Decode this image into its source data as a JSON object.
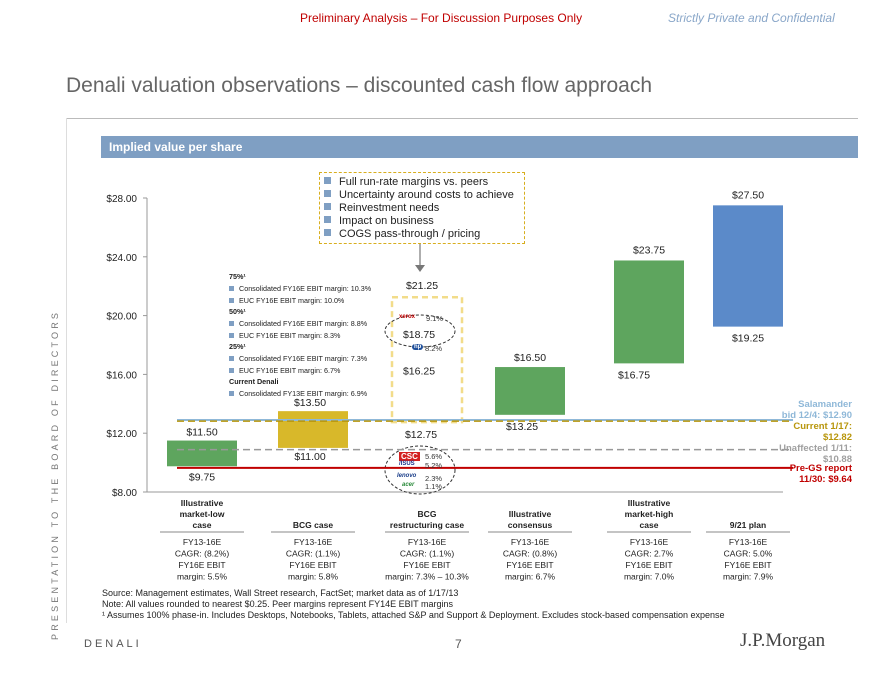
{
  "header": {
    "preliminary": "Preliminary Analysis – For Discussion Purposes Only",
    "confidential": "Strictly Private and Confidential"
  },
  "title": "Denali valuation observations – discounted cash flow approach",
  "sidebar": "PRESENTATION TO THE BOARD OF DIRECTORS",
  "section_title": "Implied value per share",
  "callout": {
    "items": [
      "Full run-rate margins vs. peers",
      "Uncertainty around costs to achieve",
      "Reinvestment needs",
      "Impact on business",
      "COGS pass-through / pricing"
    ]
  },
  "cases_legend": {
    "h75": "75%¹",
    "i75a": "Consolidated FY16E EBIT margin: 10.3%",
    "i75b": "EUC FY16E EBIT margin: 10.0%",
    "h50": "50%¹",
    "i50a": "Consolidated FY16E EBIT margin: 8.8%",
    "i50b": "EUC FY16E EBIT margin: 8.3%",
    "h25": "25%¹",
    "i25a": "Consolidated FY16E EBIT margin: 7.3%",
    "i25b": "EUC FY16E EBIT margin: 6.7%",
    "hcur": "Current Denali",
    "icur": "Consolidated FY13E EBIT margin: 6.9%"
  },
  "peers": {
    "xerox": {
      "logo": "xerox",
      "value": "9.1%"
    },
    "hp": {
      "logo": "hp",
      "value": "8.2%"
    },
    "csc": {
      "logo": "CSC",
      "value": "5.6%"
    },
    "asus": {
      "logo": "/ISUS",
      "value": "5.2%"
    },
    "lenovo": {
      "logo": "lenovo",
      "value": "2.3%"
    },
    "acer": {
      "logo": "acer",
      "value": "1.1%"
    }
  },
  "reference_lines": {
    "salamander": {
      "label1": "Salamander",
      "label2": "bid 12/4: $12.90",
      "value": 12.9,
      "color": "#8fb8d8"
    },
    "current": {
      "label1": "Current 1/17:",
      "label2": "$12.82",
      "value": 12.82,
      "color": "#b8960c"
    },
    "unaffected": {
      "label1": "Unaffected 1/11:",
      "label2": "$10.88",
      "value": 10.88,
      "color": "#999999"
    },
    "pregs": {
      "label1": "Pre-GS report",
      "label2": "11/30: $9.64",
      "value": 9.64,
      "color": "#c00000"
    }
  },
  "chart_data": {
    "type": "bar",
    "subtype": "floating-range",
    "title": "Implied value per share",
    "ylim": [
      8,
      28
    ],
    "yticks": [
      8,
      12,
      16,
      20,
      24,
      28
    ],
    "ytick_labels": [
      "$8.00",
      "$12.00",
      "$16.00",
      "$20.00",
      "$24.00",
      "$28.00"
    ],
    "categories": [
      "Illustrative market-low case",
      "BCG case",
      "BCG restructuring case",
      "Illustrative consensus",
      "Illustrative market-high case",
      "9/21 plan"
    ],
    "series": [
      {
        "name": "Implied value per share range",
        "low": [
          9.75,
          11.0,
          12.75,
          13.25,
          16.75,
          19.25
        ],
        "high": [
          11.5,
          13.5,
          21.25,
          16.5,
          23.75,
          27.5
        ],
        "low_labels": [
          "$9.75",
          "$11.00",
          "$12.75",
          "$13.25",
          "$16.75",
          "$19.25"
        ],
        "high_labels": [
          "$11.50",
          "$13.50",
          "$21.25",
          "$16.50",
          "$23.75",
          "$27.50"
        ],
        "colors": [
          "#5ea55e",
          "#d8b82a",
          "none",
          "#5ea55e",
          "#5ea55e",
          "#5b8ac9"
        ]
      }
    ],
    "bcg_restructuring_marks": [
      {
        "value": 18.75,
        "label": "$18.75"
      },
      {
        "value": 16.25,
        "label": "$16.25"
      }
    ],
    "category_labels": [
      [
        "Illustrative",
        "market-low",
        "case"
      ],
      [
        "BCG case"
      ],
      [
        "BCG",
        "restructuring case"
      ],
      [
        "Illustrative",
        "consensus"
      ],
      [
        "Illustrative",
        "market-high",
        "case"
      ],
      [
        "9/21 plan"
      ]
    ],
    "category_details": [
      [
        "FY13-16E",
        "CAGR: (8.2%)",
        "FY16E EBIT",
        "margin: 5.5%"
      ],
      [
        "FY13-16E",
        "CAGR: (1.1%)",
        "FY16E EBIT",
        "margin: 5.8%"
      ],
      [
        "FY13-16E",
        "CAGR: (1.1%)",
        "FY16E EBIT",
        "margin: 7.3% – 10.3%"
      ],
      [
        "FY13-16E",
        "CAGR: (0.8%)",
        "FY16E EBIT",
        "margin: 6.7%"
      ],
      [
        "FY13-16E",
        "CAGR: 2.7%",
        "FY16E EBIT",
        "margin: 7.0%"
      ],
      [
        "FY13-16E",
        "CAGR: 5.0%",
        "FY16E EBIT",
        "margin: 7.9%"
      ]
    ]
  },
  "footnotes": {
    "source": "Source: Management estimates, Wall Street research, FactSet; market data as of 1/17/13",
    "note": "Note: All values rounded to nearest $0.25. Peer margins represent FY14E EBIT margins",
    "fn1": "¹ Assumes 100% phase-in. Includes Desktops, Notebooks, Tablets, attached S&P and Support & Deployment. Excludes stock-based compensation expense"
  },
  "footer": {
    "name": "DENALI",
    "page": "7",
    "logo": "J.P.Morgan"
  }
}
